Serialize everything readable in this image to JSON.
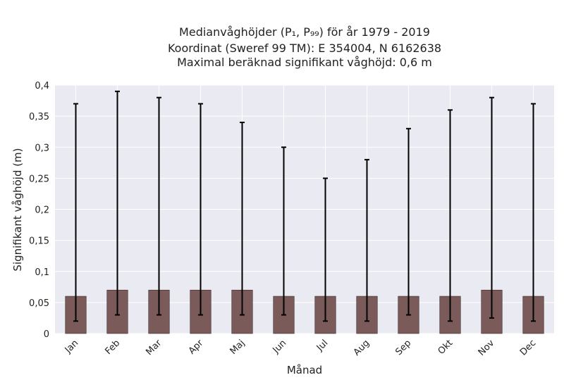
{
  "chart_data": {
    "type": "bar",
    "title_lines": [
      "Medianvåghöjder (P₁, P₉₉) för år 1979 - 2019",
      "Koordinat (Sweref 99 TM): E 354004, N 6162638",
      "Maximal beräknad signifikant våghöjd: 0,6 m"
    ],
    "xlabel": "Månad",
    "ylabel": "Signifikant våghöjd (m)",
    "ylim": [
      0,
      0.4
    ],
    "yticks": [
      0,
      0.05,
      0.1,
      0.15,
      0.2,
      0.25,
      0.3,
      0.35,
      0.4
    ],
    "ytick_labels": [
      "0",
      "0,05",
      "0,1",
      "0,15",
      "0,2",
      "0,25",
      "0,3",
      "0,35",
      "0,4"
    ],
    "categories": [
      "Jan",
      "Feb",
      "Mar",
      "Apr",
      "Maj",
      "Jun",
      "Jul",
      "Aug",
      "Sep",
      "Okt",
      "Nov",
      "Dec"
    ],
    "values": [
      0.06,
      0.07,
      0.07,
      0.07,
      0.07,
      0.06,
      0.06,
      0.06,
      0.06,
      0.06,
      0.07,
      0.06
    ],
    "p1": [
      0.02,
      0.03,
      0.03,
      0.03,
      0.03,
      0.03,
      0.02,
      0.02,
      0.03,
      0.02,
      0.025,
      0.02
    ],
    "p99": [
      0.37,
      0.39,
      0.38,
      0.37,
      0.34,
      0.3,
      0.25,
      0.28,
      0.33,
      0.36,
      0.38,
      0.37
    ],
    "grid": true,
    "colors": {
      "bar": "#7b5a5a",
      "bar_edge": "#3a2a2a",
      "error": "#000000",
      "background": "#eaeaf2",
      "grid": "#ffffff"
    }
  }
}
